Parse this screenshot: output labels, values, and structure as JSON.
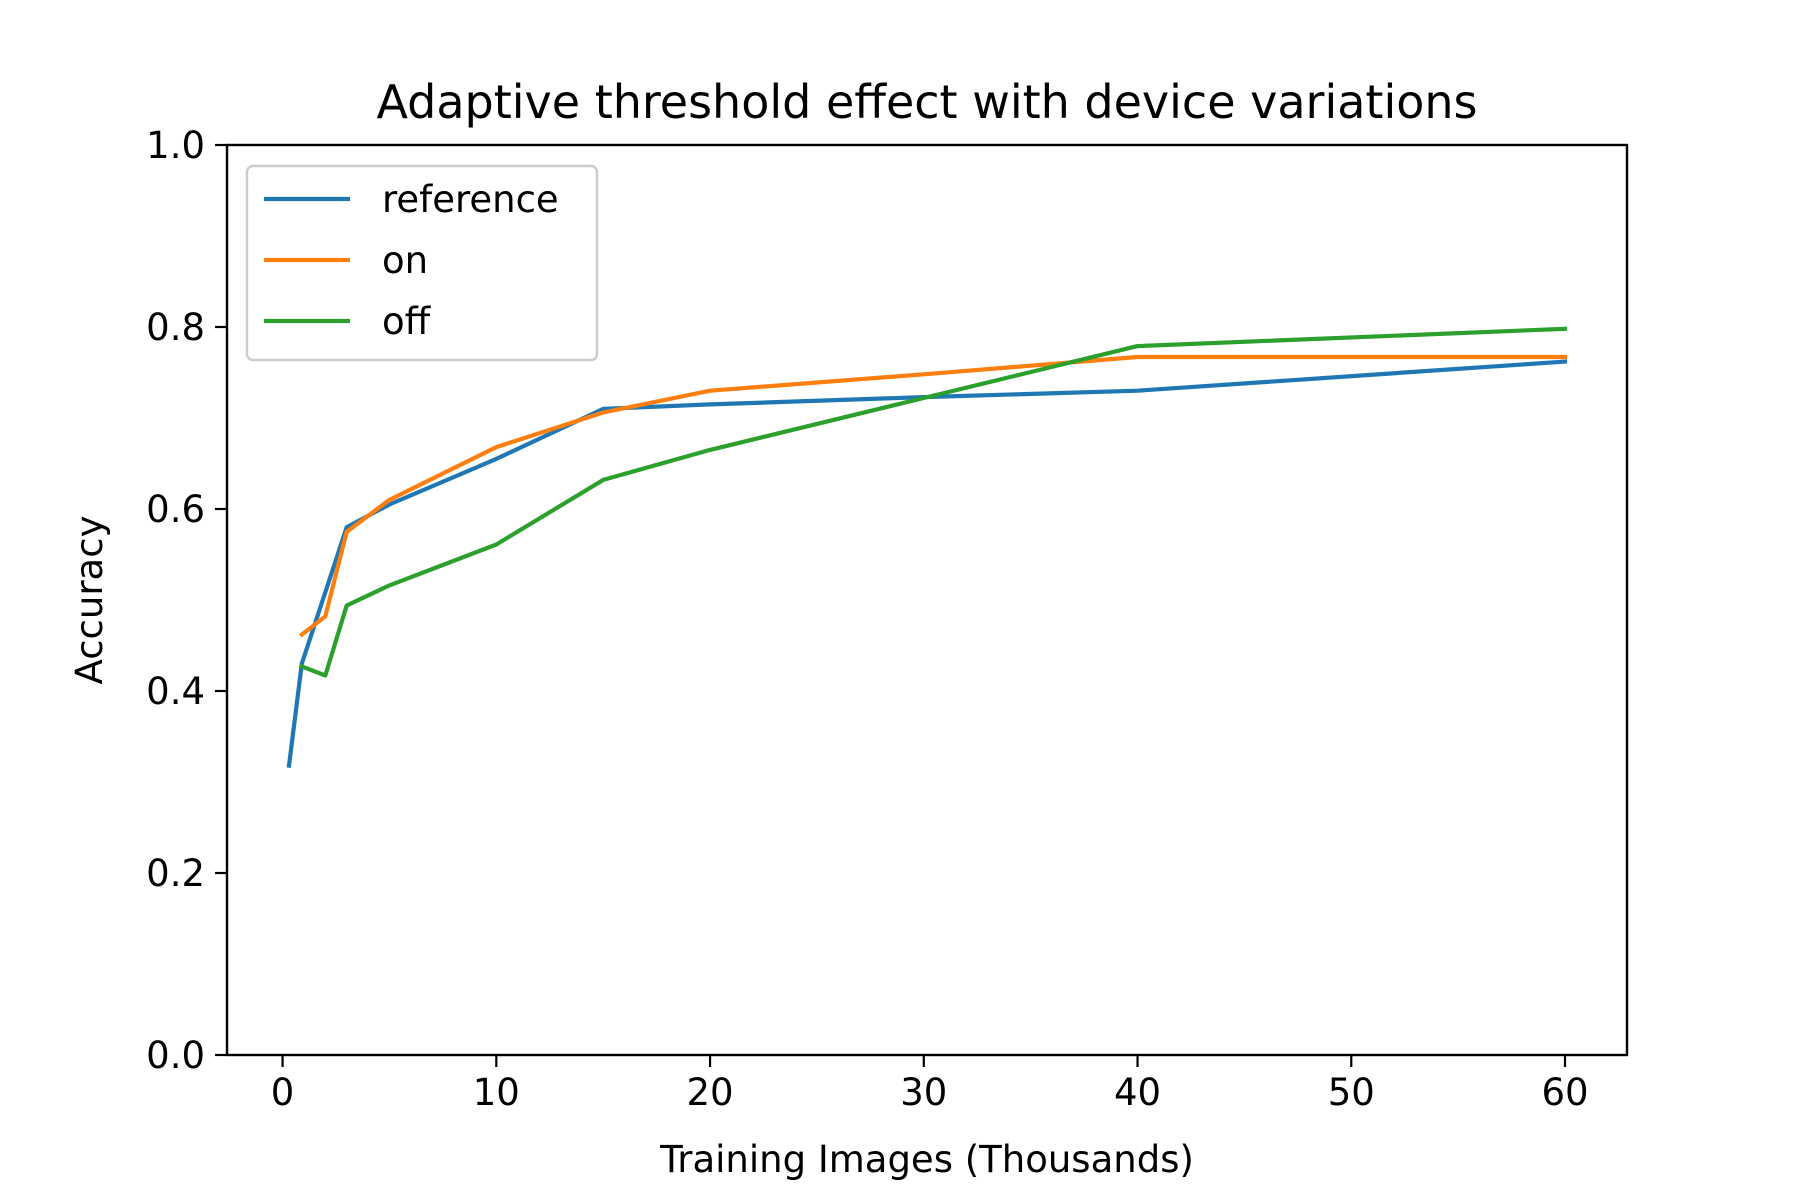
{
  "chart_data": {
    "type": "line",
    "title": "Adaptive threshold effect with device variations",
    "xlabel": "Training Images (Thousands)",
    "ylabel": "Accuracy",
    "xlim": [
      -2.6,
      62.9
    ],
    "ylim": [
      0.0,
      1.0
    ],
    "xticks": [
      0,
      10,
      20,
      30,
      40,
      50,
      60
    ],
    "xtick_labels": [
      "0",
      "10",
      "20",
      "30",
      "40",
      "50",
      "60"
    ],
    "yticks": [
      0.0,
      0.2,
      0.4,
      0.6,
      0.8,
      1.0
    ],
    "ytick_labels": [
      "0.0",
      "0.2",
      "0.4",
      "0.6",
      "0.8",
      "1.0"
    ],
    "grid": false,
    "legend_position": "top-left",
    "series": [
      {
        "name": "reference",
        "color": "#1f77b4",
        "x": [
          0.3,
          0.9,
          3,
          5,
          10,
          15,
          20,
          30,
          40,
          60
        ],
        "y": [
          0.318,
          0.43,
          0.58,
          0.605,
          0.655,
          0.71,
          0.715,
          0.723,
          0.73,
          0.762
        ]
      },
      {
        "name": "on",
        "color": "#ff7f0e",
        "x": [
          0.9,
          2,
          3,
          5,
          10,
          15,
          20,
          30,
          40,
          60
        ],
        "y": [
          0.462,
          0.482,
          0.575,
          0.61,
          0.668,
          0.706,
          0.73,
          0.748,
          0.767,
          0.767
        ]
      },
      {
        "name": "off",
        "color": "#2ca02c",
        "x": [
          0.9,
          2,
          3,
          5,
          10,
          15,
          20,
          30,
          40,
          60
        ],
        "y": [
          0.427,
          0.417,
          0.494,
          0.516,
          0.561,
          0.632,
          0.665,
          0.722,
          0.779,
          0.798
        ]
      }
    ]
  }
}
